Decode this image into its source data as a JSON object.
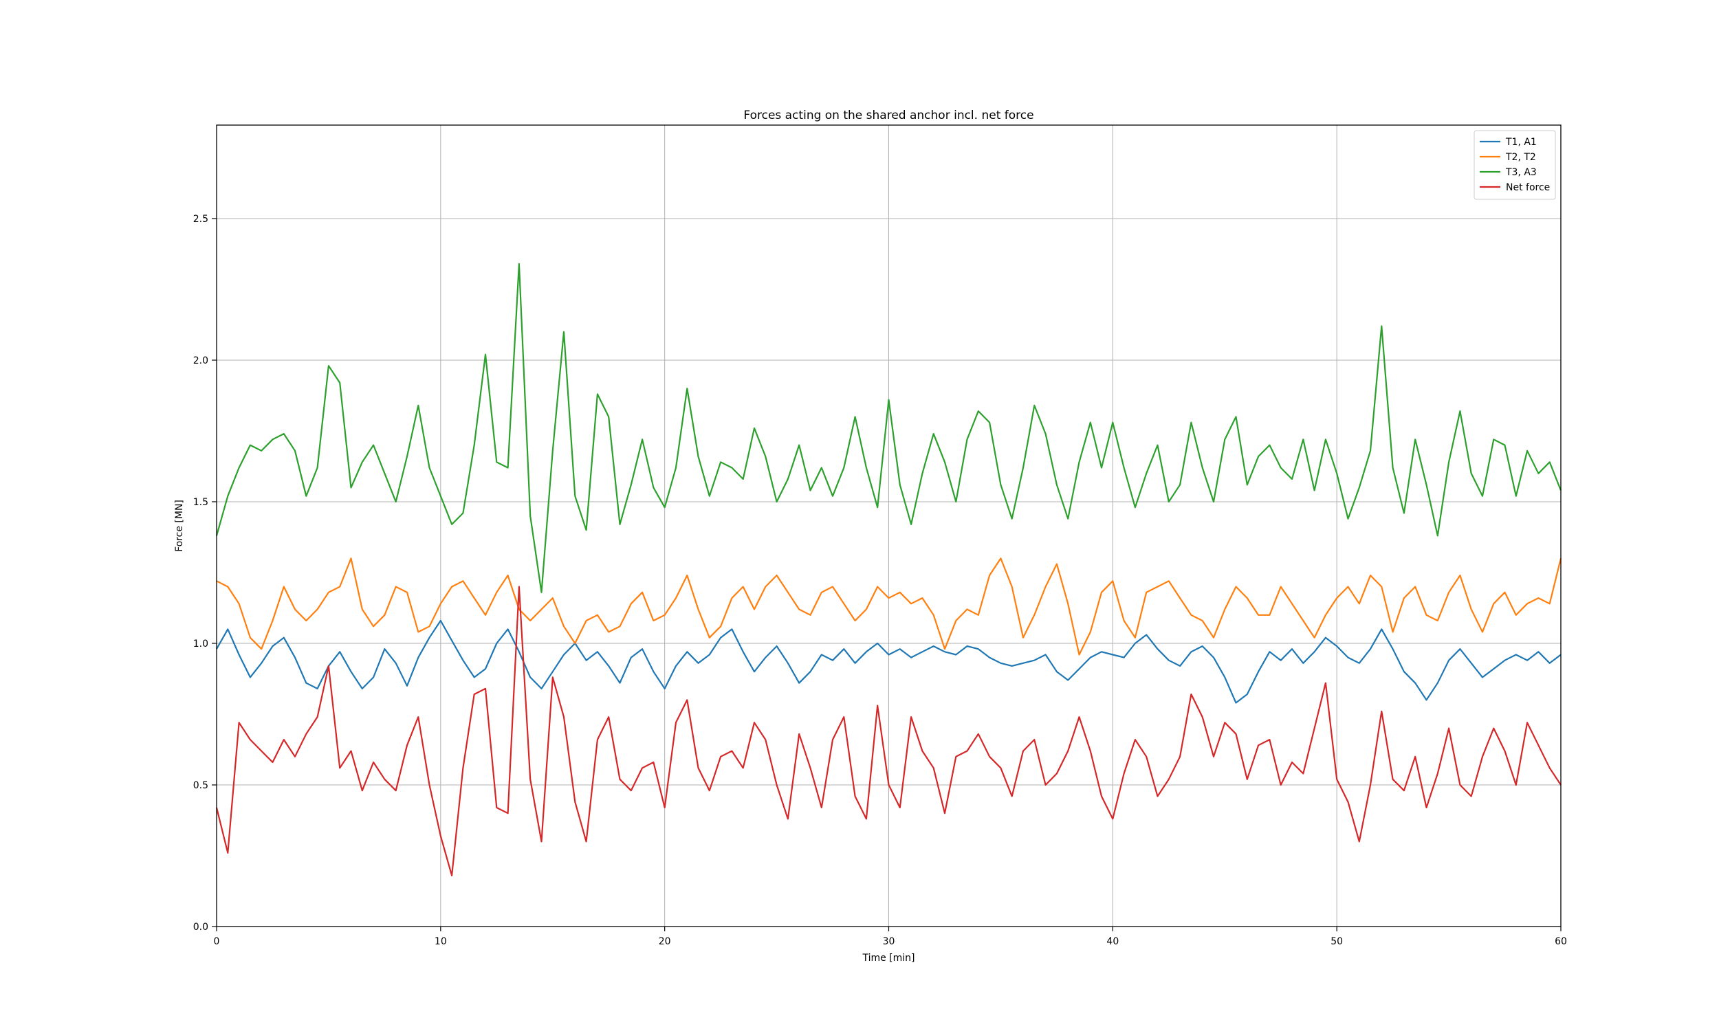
{
  "chart_data": {
    "type": "line",
    "title": "Forces acting on the shared anchor incl. net force",
    "xlabel": "Time [min]",
    "ylabel": "Force [MN]",
    "xlim": [
      0,
      60
    ],
    "ylim": [
      0,
      2.83
    ],
    "xticks": [
      0,
      10,
      20,
      30,
      40,
      50,
      60
    ],
    "yticks": [
      0.0,
      0.5,
      1.0,
      1.5,
      2.0,
      2.5
    ],
    "xtick_labels": [
      "0",
      "10",
      "20",
      "30",
      "40",
      "50",
      "60"
    ],
    "ytick_labels": [
      "0.0",
      "0.5",
      "1.0",
      "1.5",
      "2.0",
      "2.5"
    ],
    "grid": true,
    "legend_position": "top-right",
    "x": [
      0,
      0.5,
      1,
      1.5,
      2,
      2.5,
      3,
      3.5,
      4,
      4.5,
      5,
      5.5,
      6,
      6.5,
      7,
      7.5,
      8,
      8.5,
      9,
      9.5,
      10,
      10.5,
      11,
      11.5,
      12,
      12.5,
      13,
      13.5,
      14,
      14.5,
      15,
      15.5,
      16,
      16.5,
      17,
      17.5,
      18,
      18.5,
      19,
      19.5,
      20,
      20.5,
      21,
      21.5,
      22,
      22.5,
      23,
      23.5,
      24,
      24.5,
      25,
      25.5,
      26,
      26.5,
      27,
      27.5,
      28,
      28.5,
      29,
      29.5,
      30,
      30.5,
      31,
      31.5,
      32,
      32.5,
      33,
      33.5,
      34,
      34.5,
      35,
      35.5,
      36,
      36.5,
      37,
      37.5,
      38,
      38.5,
      39,
      39.5,
      40,
      40.5,
      41,
      41.5,
      42,
      42.5,
      43,
      43.5,
      44,
      44.5,
      45,
      45.5,
      46,
      46.5,
      47,
      47.5,
      48,
      48.5,
      49,
      49.5,
      50,
      50.5,
      51,
      51.5,
      52,
      52.5,
      53,
      53.5,
      54,
      54.5,
      55,
      55.5,
      56,
      56.5,
      57,
      57.5,
      58,
      58.5,
      59,
      59.5,
      60
    ],
    "series": [
      {
        "name": "T1, A1",
        "color": "#1f77b4",
        "values": [
          0.98,
          1.05,
          0.96,
          0.88,
          0.93,
          0.99,
          1.02,
          0.95,
          0.86,
          0.84,
          0.92,
          0.97,
          0.9,
          0.84,
          0.88,
          0.98,
          0.93,
          0.85,
          0.95,
          1.02,
          1.08,
          1.01,
          0.94,
          0.88,
          0.91,
          1.0,
          1.05,
          0.97,
          0.88,
          0.84,
          0.9,
          0.96,
          1.0,
          0.94,
          0.97,
          0.92,
          0.86,
          0.95,
          0.98,
          0.9,
          0.84,
          0.92,
          0.97,
          0.93,
          0.96,
          1.02,
          1.05,
          0.97,
          0.9,
          0.95,
          0.99,
          0.93,
          0.86,
          0.9,
          0.96,
          0.94,
          0.98,
          0.93,
          0.97,
          1.0,
          0.96,
          0.98,
          0.95,
          0.97,
          0.99,
          0.97,
          0.96,
          0.99,
          0.98,
          0.95,
          0.93,
          0.92,
          0.93,
          0.94,
          0.96,
          0.9,
          0.87,
          0.91,
          0.95,
          0.97,
          0.96,
          0.95,
          1.0,
          1.03,
          0.98,
          0.94,
          0.92,
          0.97,
          0.99,
          0.95,
          0.88,
          0.79,
          0.82,
          0.9,
          0.97,
          0.94,
          0.98,
          0.93,
          0.97,
          1.02,
          0.99,
          0.95,
          0.93,
          0.98,
          1.05,
          0.98,
          0.9,
          0.86,
          0.8,
          0.86,
          0.94,
          0.98,
          0.93,
          0.88,
          0.91,
          0.94,
          0.96,
          0.94,
          0.97,
          0.93,
          0.96
        ]
      },
      {
        "name": "T2, T2",
        "color": "#ff7f0e",
        "values": [
          1.22,
          1.2,
          1.14,
          1.02,
          0.98,
          1.08,
          1.2,
          1.12,
          1.08,
          1.12,
          1.18,
          1.2,
          1.3,
          1.12,
          1.06,
          1.1,
          1.2,
          1.18,
          1.04,
          1.06,
          1.14,
          1.2,
          1.22,
          1.16,
          1.1,
          1.18,
          1.24,
          1.12,
          1.08,
          1.12,
          1.16,
          1.06,
          1.0,
          1.08,
          1.1,
          1.04,
          1.06,
          1.14,
          1.18,
          1.08,
          1.1,
          1.16,
          1.24,
          1.12,
          1.02,
          1.06,
          1.16,
          1.2,
          1.12,
          1.2,
          1.24,
          1.18,
          1.12,
          1.1,
          1.18,
          1.2,
          1.14,
          1.08,
          1.12,
          1.2,
          1.16,
          1.18,
          1.14,
          1.16,
          1.1,
          0.98,
          1.08,
          1.12,
          1.1,
          1.24,
          1.3,
          1.2,
          1.02,
          1.1,
          1.2,
          1.28,
          1.14,
          0.96,
          1.04,
          1.18,
          1.22,
          1.08,
          1.02,
          1.18,
          1.2,
          1.22,
          1.16,
          1.1,
          1.08,
          1.02,
          1.12,
          1.2,
          1.16,
          1.1,
          1.1,
          1.2,
          1.14,
          1.08,
          1.02,
          1.1,
          1.16,
          1.2,
          1.14,
          1.24,
          1.2,
          1.04,
          1.16,
          1.2,
          1.1,
          1.08,
          1.18,
          1.24,
          1.12,
          1.04,
          1.14,
          1.18,
          1.1,
          1.14,
          1.16,
          1.14,
          1.3
        ]
      },
      {
        "name": "T3, A3",
        "color": "#2ca02c",
        "values": [
          1.38,
          1.52,
          1.62,
          1.7,
          1.68,
          1.72,
          1.74,
          1.68,
          1.52,
          1.62,
          1.98,
          1.92,
          1.55,
          1.64,
          1.7,
          1.6,
          1.5,
          1.66,
          1.84,
          1.62,
          1.52,
          1.42,
          1.46,
          1.7,
          2.02,
          1.64,
          1.62,
          2.34,
          1.45,
          1.18,
          1.68,
          2.1,
          1.52,
          1.4,
          1.88,
          1.8,
          1.42,
          1.56,
          1.72,
          1.55,
          1.48,
          1.62,
          1.9,
          1.66,
          1.52,
          1.64,
          1.62,
          1.58,
          1.76,
          1.66,
          1.5,
          1.58,
          1.7,
          1.54,
          1.62,
          1.52,
          1.62,
          1.8,
          1.62,
          1.48,
          1.86,
          1.56,
          1.42,
          1.6,
          1.74,
          1.64,
          1.5,
          1.72,
          1.82,
          1.78,
          1.56,
          1.44,
          1.62,
          1.84,
          1.74,
          1.56,
          1.44,
          1.64,
          1.78,
          1.62,
          1.78,
          1.62,
          1.48,
          1.6,
          1.7,
          1.5,
          1.56,
          1.78,
          1.62,
          1.5,
          1.72,
          1.8,
          1.56,
          1.66,
          1.7,
          1.62,
          1.58,
          1.72,
          1.54,
          1.72,
          1.6,
          1.44,
          1.55,
          1.68,
          2.12,
          1.62,
          1.46,
          1.72,
          1.56,
          1.38,
          1.64,
          1.82,
          1.6,
          1.52,
          1.72,
          1.7,
          1.52,
          1.68,
          1.6,
          1.64,
          1.54
        ]
      },
      {
        "name": "Net force",
        "color": "#d62728",
        "values": [
          0.42,
          0.26,
          0.72,
          0.66,
          0.62,
          0.58,
          0.66,
          0.6,
          0.68,
          0.74,
          0.92,
          0.56,
          0.62,
          0.48,
          0.58,
          0.52,
          0.48,
          0.64,
          0.74,
          0.5,
          0.32,
          0.18,
          0.56,
          0.82,
          0.84,
          0.42,
          0.4,
          1.2,
          0.52,
          0.3,
          0.88,
          0.74,
          0.44,
          0.3,
          0.66,
          0.74,
          0.52,
          0.48,
          0.56,
          0.58,
          0.42,
          0.72,
          0.8,
          0.56,
          0.48,
          0.6,
          0.62,
          0.56,
          0.72,
          0.66,
          0.5,
          0.38,
          0.68,
          0.56,
          0.42,
          0.66,
          0.74,
          0.46,
          0.38,
          0.78,
          0.5,
          0.42,
          0.74,
          0.62,
          0.56,
          0.4,
          0.6,
          0.62,
          0.68,
          0.6,
          0.56,
          0.46,
          0.62,
          0.66,
          0.5,
          0.54,
          0.62,
          0.74,
          0.62,
          0.46,
          0.38,
          0.54,
          0.66,
          0.6,
          0.46,
          0.52,
          0.6,
          0.82,
          0.74,
          0.6,
          0.72,
          0.68,
          0.52,
          0.64,
          0.66,
          0.5,
          0.58,
          0.54,
          0.7,
          0.86,
          0.52,
          0.44,
          0.3,
          0.5,
          0.76,
          0.52,
          0.48,
          0.6,
          0.42,
          0.54,
          0.7,
          0.5,
          0.46,
          0.6,
          0.7,
          0.62,
          0.5,
          0.72,
          0.64,
          0.56,
          0.5
        ]
      }
    ]
  }
}
